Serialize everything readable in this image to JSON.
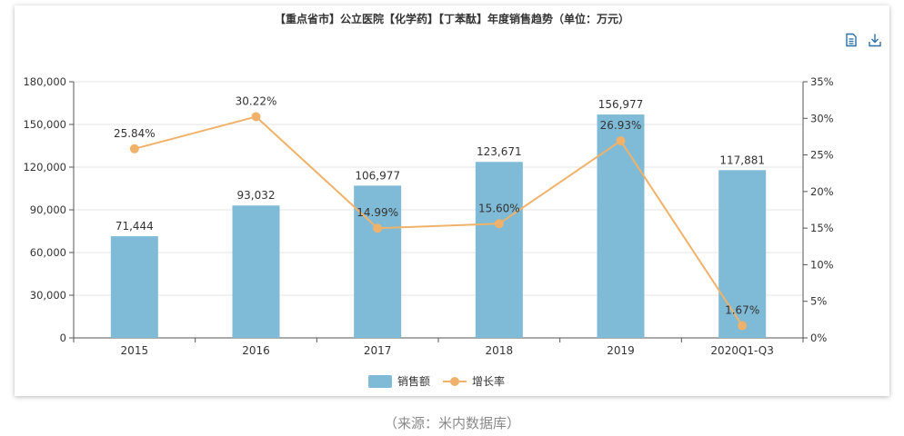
{
  "chart_data": {
    "type": "bar",
    "title": "【重点省市】公立医院【化学药】【丁苯酞】年度销售趋势（单位：万元）",
    "categories": [
      "2015",
      "2016",
      "2017",
      "2018",
      "2019",
      "2020Q1-Q3"
    ],
    "series": [
      {
        "name": "销售额",
        "type": "bar",
        "axis": "left",
        "color": "#7fbbd6",
        "values": [
          71444,
          93032,
          106977,
          123671,
          156977,
          117881
        ],
        "labels": [
          "71,444",
          "93,032",
          "106,977",
          "123,671",
          "156,977",
          "117,881"
        ]
      },
      {
        "name": "增长率",
        "type": "line",
        "axis": "right",
        "color": "#f0b26a",
        "values": [
          25.84,
          30.22,
          14.99,
          15.6,
          26.93,
          1.67
        ],
        "labels": [
          "25.84%",
          "30.22%",
          "14.99%",
          "15.60%",
          "26.93%",
          "1.67%"
        ]
      }
    ],
    "y_left": {
      "range": [
        0,
        180000
      ],
      "ticks": [
        0,
        30000,
        60000,
        90000,
        120000,
        150000,
        180000
      ],
      "tick_labels": [
        "0",
        "30,000",
        "60,000",
        "90,000",
        "120,000",
        "150,000",
        "180,000"
      ]
    },
    "y_right": {
      "range": [
        0,
        35
      ],
      "ticks": [
        0,
        5,
        10,
        15,
        20,
        25,
        30,
        35
      ],
      "tick_labels": [
        "0%",
        "5%",
        "10%",
        "15%",
        "20%",
        "25%",
        "30%",
        "35%"
      ]
    },
    "grid": true,
    "legend": "bottom-center"
  },
  "toolbar": {
    "icons": [
      "data-view-icon",
      "download-icon"
    ]
  },
  "source": "（来源：米内数据库）"
}
